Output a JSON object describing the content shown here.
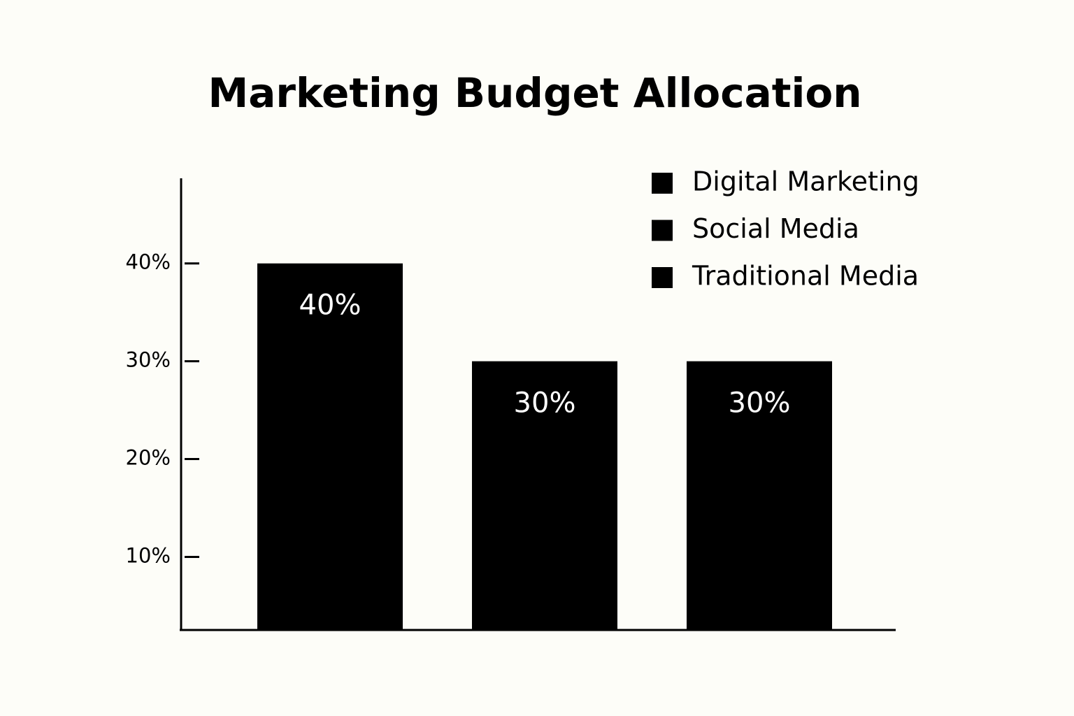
{
  "chart_data": {
    "type": "bar",
    "title": "Marketing Budget Allocation",
    "categories": [
      "Digital Marketing",
      "Social Media",
      "Traditional Media"
    ],
    "values": [
      40,
      30,
      30
    ],
    "value_labels": [
      "40%",
      "30%",
      "30%"
    ],
    "color": "#000000",
    "ylim": [
      2.6,
      48.7
    ],
    "yticks": [
      {
        "value": 10,
        "label": "10%"
      },
      {
        "value": 20,
        "label": "20%"
      },
      {
        "value": 30,
        "label": "30%"
      },
      {
        "value": 40,
        "label": "40%"
      }
    ],
    "grid": false,
    "legend": "upper-right"
  }
}
